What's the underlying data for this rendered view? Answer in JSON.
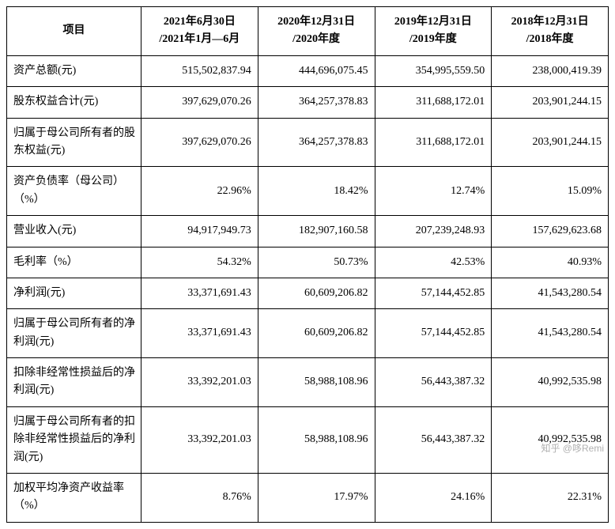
{
  "table": {
    "columns": [
      {
        "label": "项目",
        "align": "center"
      },
      {
        "label": "2021年6月30日\n/2021年1月—6月",
        "align": "center"
      },
      {
        "label": "2020年12月31日\n/2020年度",
        "align": "center"
      },
      {
        "label": "2019年12月31日\n/2019年度",
        "align": "center"
      },
      {
        "label": "2018年12月31日\n/2018年度",
        "align": "center"
      }
    ],
    "rows": [
      {
        "label": "资产总额(元)",
        "values": [
          "515,502,837.94",
          "444,696,075.45",
          "354,995,559.50",
          "238,000,419.39"
        ]
      },
      {
        "label": "股东权益合计(元)",
        "values": [
          "397,629,070.26",
          "364,257,378.83",
          "311,688,172.01",
          "203,901,244.15"
        ]
      },
      {
        "label": "归属于母公司所有者的股东权益(元)",
        "values": [
          "397,629,070.26",
          "364,257,378.83",
          "311,688,172.01",
          "203,901,244.15"
        ]
      },
      {
        "label": "资产负债率（母公司）（%）",
        "values": [
          "22.96%",
          "18.42%",
          "12.74%",
          "15.09%"
        ]
      },
      {
        "label": "营业收入(元)",
        "values": [
          "94,917,949.73",
          "182,907,160.58",
          "207,239,248.93",
          "157,629,623.68"
        ]
      },
      {
        "label": "毛利率（%）",
        "values": [
          "54.32%",
          "50.73%",
          "42.53%",
          "40.93%"
        ]
      },
      {
        "label": "净利润(元)",
        "values": [
          "33,371,691.43",
          "60,609,206.82",
          "57,144,452.85",
          "41,543,280.54"
        ]
      },
      {
        "label": "归属于母公司所有者的净利润(元)",
        "values": [
          "33,371,691.43",
          "60,609,206.82",
          "57,144,452.85",
          "41,543,280.54"
        ]
      },
      {
        "label": "扣除非经常性损益后的净利润(元)",
        "values": [
          "33,392,201.03",
          "58,988,108.96",
          "56,443,387.32",
          "40,992,535.98"
        ]
      },
      {
        "label": "归属于母公司所有者的扣除非经常性损益后的净利润(元)",
        "values": [
          "33,392,201.03",
          "58,988,108.96",
          "56,443,387.32",
          "40,992,535.98"
        ]
      },
      {
        "label": "加权平均净资产收益率（%）",
        "values": [
          "8.76%",
          "17.97%",
          "24.16%",
          "22.31%"
        ]
      }
    ],
    "styling": {
      "border_color": "#000000",
      "background_color": "#ffffff",
      "text_color": "#000000",
      "font_size_pt": 10.5,
      "header_font_weight": "bold",
      "label_align": "left",
      "value_align": "right",
      "header_align": "center",
      "col_widths": [
        "170px",
        "auto",
        "auto",
        "auto",
        "auto"
      ]
    }
  },
  "watermark": "知乎 @哆Remi"
}
